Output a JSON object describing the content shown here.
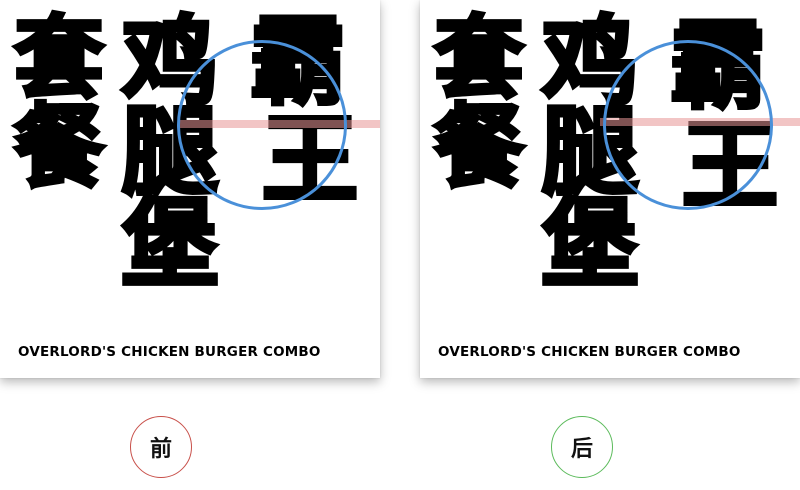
{
  "cards": {
    "before": {
      "chars": {
        "c1": "套",
        "c2": "餐",
        "c3": "鸡",
        "c4": "腿",
        "c5": "堡",
        "c6": "霸",
        "c7": "王"
      },
      "caption": "OVERLORD'S CHICKEN BURGER COMBO"
    },
    "after": {
      "chars": {
        "c1": "套",
        "c2": "餐",
        "c3": "鸡",
        "c4": "腿",
        "c5": "堡",
        "c6": "霸",
        "c7": "王"
      },
      "caption": "OVERLORD'S CHICKEN BURGER COMBO"
    }
  },
  "labels": {
    "before": "前",
    "after": "后"
  },
  "colors": {
    "magnifier_ring": "#4a90d9",
    "guide_line": "#e89696",
    "before_ring": "#c8504a",
    "after_ring": "#5cbb5c"
  }
}
